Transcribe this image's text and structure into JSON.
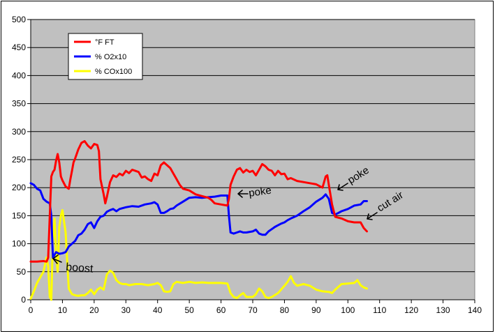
{
  "chart_data": {
    "type": "line",
    "title": "",
    "xlabel": "",
    "ylabel": "",
    "xlim": [
      0,
      140
    ],
    "ylim": [
      0,
      500
    ],
    "x_ticks": [
      0,
      10,
      20,
      30,
      40,
      50,
      60,
      70,
      80,
      90,
      100,
      110,
      120,
      130,
      140
    ],
    "y_ticks": [
      0,
      50,
      100,
      150,
      200,
      250,
      300,
      350,
      400,
      450,
      500
    ],
    "grid": "horizontal",
    "legend_position": "top-left",
    "plot_background": "#c0c0c0",
    "series": [
      {
        "name": "°F FT",
        "color": "#ff0000",
        "points": [
          [
            0,
            68
          ],
          [
            2,
            68
          ],
          [
            4,
            69
          ],
          [
            5,
            68
          ],
          [
            5.5,
            75
          ],
          [
            6,
            150
          ],
          [
            6.5,
            220
          ],
          [
            7,
            228
          ],
          [
            7.5,
            232
          ],
          [
            8,
            248
          ],
          [
            8.5,
            260
          ],
          [
            9,
            245
          ],
          [
            9.5,
            220
          ],
          [
            10,
            213
          ],
          [
            11,
            202
          ],
          [
            12,
            198
          ],
          [
            12.5,
            215
          ],
          [
            13,
            230
          ],
          [
            13.5,
            245
          ],
          [
            14,
            252
          ],
          [
            15,
            268
          ],
          [
            16,
            280
          ],
          [
            17,
            283
          ],
          [
            18,
            275
          ],
          [
            19,
            270
          ],
          [
            20,
            278
          ],
          [
            21,
            276
          ],
          [
            21.5,
            265
          ],
          [
            22,
            215
          ],
          [
            23,
            188
          ],
          [
            23.5,
            172
          ],
          [
            24,
            183
          ],
          [
            25,
            210
          ],
          [
            26,
            222
          ],
          [
            27,
            219
          ],
          [
            28,
            225
          ],
          [
            29,
            222
          ],
          [
            30,
            230
          ],
          [
            31,
            226
          ],
          [
            32,
            232
          ],
          [
            33,
            230
          ],
          [
            34,
            228
          ],
          [
            35,
            218
          ],
          [
            36,
            220
          ],
          [
            37,
            215
          ],
          [
            38,
            212
          ],
          [
            39,
            225
          ],
          [
            40,
            222
          ],
          [
            41,
            240
          ],
          [
            42,
            245
          ],
          [
            43,
            240
          ],
          [
            44,
            235
          ],
          [
            45,
            225
          ],
          [
            46,
            215
          ],
          [
            47,
            205
          ],
          [
            48,
            198
          ],
          [
            50,
            195
          ],
          [
            52,
            188
          ],
          [
            54,
            185
          ],
          [
            56,
            182
          ],
          [
            57,
            178
          ],
          [
            58,
            172
          ],
          [
            60,
            170
          ],
          [
            62,
            168
          ],
          [
            62.5,
            180
          ],
          [
            63,
            205
          ],
          [
            64,
            220
          ],
          [
            65,
            232
          ],
          [
            66,
            235
          ],
          [
            67,
            227
          ],
          [
            68,
            232
          ],
          [
            69,
            228
          ],
          [
            70,
            230
          ],
          [
            71,
            222
          ],
          [
            72,
            232
          ],
          [
            73,
            242
          ],
          [
            74,
            238
          ],
          [
            75,
            232
          ],
          [
            76,
            230
          ],
          [
            77,
            222
          ],
          [
            78,
            230
          ],
          [
            79,
            224
          ],
          [
            80,
            225
          ],
          [
            81,
            215
          ],
          [
            82,
            217
          ],
          [
            84,
            212
          ],
          [
            86,
            210
          ],
          [
            88,
            208
          ],
          [
            90,
            206
          ],
          [
            92,
            200
          ],
          [
            93,
            220
          ],
          [
            93.5,
            222
          ],
          [
            94,
            205
          ],
          [
            95,
            170
          ],
          [
            96,
            148
          ],
          [
            98,
            145
          ],
          [
            100,
            140
          ],
          [
            102,
            138
          ],
          [
            104,
            138
          ],
          [
            105,
            128
          ],
          [
            106,
            122
          ]
        ]
      },
      {
        "name": "% O2x10",
        "color": "#0000ff",
        "points": [
          [
            0,
            208
          ],
          [
            1,
            205
          ],
          [
            2,
            198
          ],
          [
            3,
            195
          ],
          [
            4,
            180
          ],
          [
            5,
            175
          ],
          [
            6,
            172
          ],
          [
            6.5,
            150
          ],
          [
            7,
            75
          ],
          [
            8,
            85
          ],
          [
            9,
            82
          ],
          [
            10,
            83
          ],
          [
            11,
            85
          ],
          [
            12,
            95
          ],
          [
            13,
            100
          ],
          [
            14,
            105
          ],
          [
            15,
            115
          ],
          [
            16,
            118
          ],
          [
            17,
            125
          ],
          [
            18,
            135
          ],
          [
            19,
            138
          ],
          [
            20,
            128
          ],
          [
            21,
            140
          ],
          [
            22,
            148
          ],
          [
            23,
            150
          ],
          [
            24,
            157
          ],
          [
            25,
            160
          ],
          [
            26,
            162
          ],
          [
            27,
            158
          ],
          [
            28,
            162
          ],
          [
            30,
            165
          ],
          [
            32,
            167
          ],
          [
            34,
            166
          ],
          [
            36,
            170
          ],
          [
            38,
            172
          ],
          [
            39,
            174
          ],
          [
            40,
            170
          ],
          [
            41,
            155
          ],
          [
            42,
            155
          ],
          [
            43,
            158
          ],
          [
            44,
            162
          ],
          [
            45,
            163
          ],
          [
            46,
            168
          ],
          [
            48,
            175
          ],
          [
            50,
            182
          ],
          [
            52,
            183
          ],
          [
            54,
            182
          ],
          [
            56,
            183
          ],
          [
            58,
            184
          ],
          [
            60,
            186
          ],
          [
            62,
            186
          ],
          [
            62.5,
            150
          ],
          [
            63,
            120
          ],
          [
            64,
            118
          ],
          [
            65,
            120
          ],
          [
            66,
            122
          ],
          [
            67,
            120
          ],
          [
            68,
            120
          ],
          [
            70,
            122
          ],
          [
            71,
            125
          ],
          [
            72,
            118
          ],
          [
            73,
            116
          ],
          [
            74,
            116
          ],
          [
            75,
            122
          ],
          [
            76,
            126
          ],
          [
            77,
            130
          ],
          [
            78,
            133
          ],
          [
            79,
            136
          ],
          [
            80,
            138
          ],
          [
            81,
            142
          ],
          [
            82,
            145
          ],
          [
            84,
            150
          ],
          [
            86,
            158
          ],
          [
            88,
            165
          ],
          [
            90,
            175
          ],
          [
            92,
            182
          ],
          [
            93,
            188
          ],
          [
            94,
            180
          ],
          [
            95,
            155
          ],
          [
            96,
            152
          ],
          [
            97,
            155
          ],
          [
            98,
            158
          ],
          [
            100,
            162
          ],
          [
            102,
            168
          ],
          [
            104,
            170
          ],
          [
            105,
            176
          ],
          [
            106,
            176
          ]
        ]
      },
      {
        "name": "% COx100",
        "color": "#ffff00",
        "points": [
          [
            0,
            2
          ],
          [
            1,
            15
          ],
          [
            2,
            30
          ],
          [
            3,
            40
          ],
          [
            4,
            50
          ],
          [
            5,
            75
          ],
          [
            5.5,
            60
          ],
          [
            6,
            5
          ],
          [
            6.5,
            0
          ],
          [
            7,
            110
          ],
          [
            7.5,
            145
          ],
          [
            8,
            85
          ],
          [
            8.5,
            50
          ],
          [
            9,
            130
          ],
          [
            9.5,
            150
          ],
          [
            10,
            160
          ],
          [
            10.5,
            140
          ],
          [
            11,
            120
          ],
          [
            11.5,
            70
          ],
          [
            12,
            20
          ],
          [
            13,
            10
          ],
          [
            14,
            8
          ],
          [
            15,
            7
          ],
          [
            16,
            8
          ],
          [
            17,
            8
          ],
          [
            18,
            12
          ],
          [
            19,
            18
          ],
          [
            20,
            10
          ],
          [
            21,
            18
          ],
          [
            22,
            22
          ],
          [
            23,
            18
          ],
          [
            24,
            45
          ],
          [
            25,
            52
          ],
          [
            26,
            48
          ],
          [
            27,
            35
          ],
          [
            28,
            30
          ],
          [
            29,
            28
          ],
          [
            30,
            28
          ],
          [
            31,
            26
          ],
          [
            33,
            28
          ],
          [
            35,
            28
          ],
          [
            37,
            26
          ],
          [
            39,
            28
          ],
          [
            40,
            30
          ],
          [
            41,
            26
          ],
          [
            42,
            15
          ],
          [
            43,
            14
          ],
          [
            44,
            15
          ],
          [
            45,
            28
          ],
          [
            46,
            32
          ],
          [
            48,
            30
          ],
          [
            50,
            32
          ],
          [
            52,
            30
          ],
          [
            54,
            31
          ],
          [
            56,
            30
          ],
          [
            58,
            30
          ],
          [
            60,
            30
          ],
          [
            62,
            29
          ],
          [
            63,
            12
          ],
          [
            64,
            5
          ],
          [
            65,
            3
          ],
          [
            66,
            8
          ],
          [
            67,
            12
          ],
          [
            68,
            5
          ],
          [
            70,
            5
          ],
          [
            71,
            10
          ],
          [
            72,
            20
          ],
          [
            73,
            15
          ],
          [
            74,
            5
          ],
          [
            75,
            3
          ],
          [
            76,
            5
          ],
          [
            78,
            12
          ],
          [
            80,
            25
          ],
          [
            81,
            32
          ],
          [
            82,
            42
          ],
          [
            83,
            30
          ],
          [
            84,
            25
          ],
          [
            86,
            28
          ],
          [
            88,
            25
          ],
          [
            90,
            18
          ],
          [
            92,
            15
          ],
          [
            94,
            14
          ],
          [
            95,
            12
          ],
          [
            96,
            18
          ],
          [
            98,
            28
          ],
          [
            100,
            29
          ],
          [
            102,
            30
          ],
          [
            103,
            35
          ],
          [
            104,
            26
          ],
          [
            105,
            22
          ],
          [
            106,
            20
          ]
        ]
      }
    ],
    "annotations": [
      {
        "text": "boost"
      },
      {
        "text": "poke"
      },
      {
        "text": "poke"
      },
      {
        "text": "cut air"
      }
    ]
  }
}
